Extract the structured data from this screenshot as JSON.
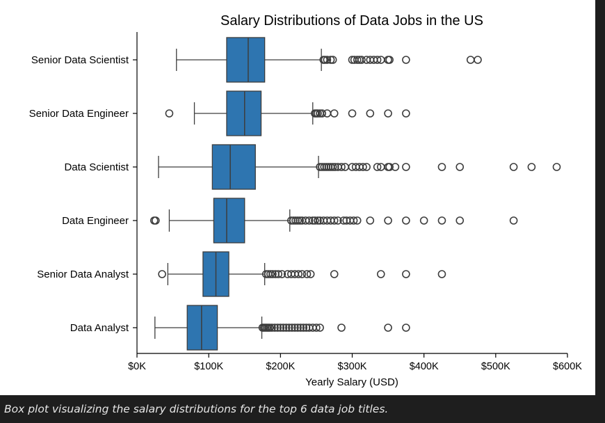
{
  "caption": "Box plot visualizing the salary distributions for the top 6 data job titles.",
  "colors": {
    "box_fill": "#2e75b0",
    "line": "#3d3d3d",
    "page_bg": "#1e1e1e",
    "figure_bg": "#ffffff"
  },
  "chart_data": {
    "type": "box",
    "orientation": "horizontal",
    "title": "Salary Distributions of Data Jobs in the US",
    "xlabel": "Yearly Salary (USD)",
    "ylabel": "",
    "xlim": [
      0,
      600000
    ],
    "xticks": [
      0,
      100000,
      200000,
      300000,
      400000,
      500000,
      600000
    ],
    "xtick_labels": [
      "$0K",
      "$100K",
      "$200K",
      "$300K",
      "$400K",
      "$500K",
      "$600K"
    ],
    "grid": false,
    "categories": [
      "Senior Data Scientist",
      "Senior Data Engineer",
      "Data Scientist",
      "Data Engineer",
      "Senior Data Analyst",
      "Data Analyst"
    ],
    "boxes": [
      {
        "label": "Senior Data Scientist",
        "whisker_low": 55000,
        "q1": 125000,
        "median": 155000,
        "q3": 178000,
        "whisker_high": 257000,
        "outliers": [
          260000,
          262000,
          265000,
          270000,
          273000,
          300000,
          303000,
          307000,
          310000,
          313000,
          320000,
          325000,
          330000,
          335000,
          340000,
          350000,
          352000,
          375000,
          465000,
          475000
        ]
      },
      {
        "label": "Senior Data Engineer",
        "whisker_low": 80000,
        "q1": 125000,
        "median": 150000,
        "q3": 173000,
        "whisker_high": 245000,
        "outliers": [
          45000,
          248000,
          250000,
          252000,
          255000,
          258000,
          265000,
          275000,
          300000,
          325000,
          350000,
          375000
        ]
      },
      {
        "label": "Data Scientist",
        "whisker_low": 30000,
        "q1": 105000,
        "median": 130000,
        "q3": 165000,
        "whisker_high": 253000,
        "outliers": [
          255000,
          258000,
          261000,
          264000,
          267000,
          270000,
          273000,
          276000,
          280000,
          285000,
          290000,
          300000,
          305000,
          310000,
          315000,
          320000,
          335000,
          340000,
          350000,
          352000,
          360000,
          375000,
          425000,
          450000,
          525000,
          550000,
          585000
        ]
      },
      {
        "label": "Data Engineer",
        "whisker_low": 45000,
        "q1": 107000,
        "median": 125000,
        "q3": 150000,
        "whisker_high": 213000,
        "outliers": [
          24000,
          26000,
          215000,
          218000,
          221000,
          224000,
          227000,
          230000,
          235000,
          240000,
          245000,
          248000,
          252000,
          255000,
          260000,
          265000,
          270000,
          275000,
          280000,
          288000,
          292000,
          297000,
          302000,
          307000,
          325000,
          350000,
          375000,
          400000,
          425000,
          450000,
          525000
        ]
      },
      {
        "label": "Senior Data Analyst",
        "whisker_low": 43000,
        "q1": 92000,
        "median": 110000,
        "q3": 128000,
        "whisker_high": 178000,
        "outliers": [
          35000,
          180000,
          183000,
          186000,
          189000,
          193000,
          197000,
          202000,
          210000,
          215000,
          220000,
          225000,
          230000,
          237000,
          242000,
          275000,
          340000,
          375000,
          425000
        ]
      },
      {
        "label": "Data Analyst",
        "whisker_low": 25000,
        "q1": 70000,
        "median": 90000,
        "q3": 112000,
        "whisker_high": 174000,
        "outliers": [
          175000,
          177000,
          179000,
          181000,
          183000,
          185000,
          188000,
          192000,
          196000,
          200000,
          204000,
          208000,
          212000,
          216000,
          220000,
          224000,
          228000,
          232000,
          236000,
          240000,
          245000,
          250000,
          255000,
          285000,
          350000,
          375000
        ]
      }
    ]
  }
}
